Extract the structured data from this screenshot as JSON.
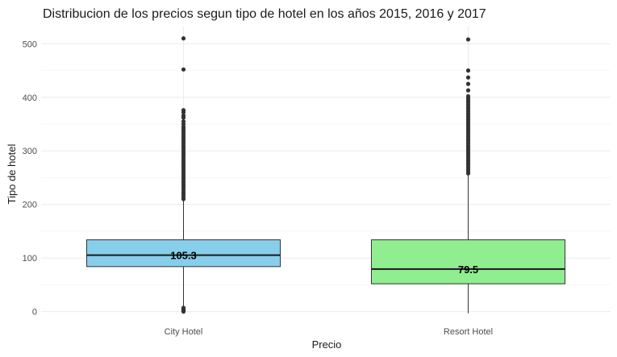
{
  "chart_data": {
    "type": "box",
    "title": "Distribucion de los precios segun tipo de hotel en los años 2015, 2016 y 2017",
    "xlabel": "Precio",
    "ylabel": "Tipo de hotel",
    "ylim": [
      -5,
      532
    ],
    "y_ticks": [
      0,
      100,
      200,
      300,
      400,
      500
    ],
    "grid": true,
    "categories": [
      "City Hotel",
      "Resort Hotel"
    ],
    "series": [
      {
        "category": "City Hotel",
        "color": "#87CEEB",
        "whisker_low": 0,
        "q1": 84,
        "median": 105.3,
        "q3": 134,
        "whisker_high": 209,
        "median_label": "105.3",
        "outliers": [
          0,
          1,
          2,
          3,
          4,
          5,
          6,
          7,
          210,
          214,
          218,
          222,
          226,
          230,
          234,
          238,
          242,
          246,
          250,
          254,
          258,
          262,
          266,
          270,
          274,
          278,
          282,
          286,
          290,
          294,
          298,
          302,
          306,
          310,
          314,
          318,
          322,
          326,
          330,
          334,
          338,
          342,
          345,
          350,
          355,
          362,
          366,
          372,
          376,
          452,
          510
        ]
      },
      {
        "category": "Resort Hotel",
        "color": "#90EE90",
        "whisker_low": -3,
        "q1": 52,
        "median": 79.5,
        "q3": 134,
        "whisker_high": 257,
        "median_label": "79.5",
        "outliers": [
          258,
          262,
          266,
          270,
          274,
          278,
          282,
          286,
          290,
          294,
          298,
          302,
          306,
          310,
          314,
          318,
          322,
          326,
          330,
          334,
          338,
          342,
          346,
          350,
          354,
          358,
          362,
          366,
          370,
          374,
          378,
          382,
          386,
          390,
          394,
          398,
          402,
          413,
          425,
          437,
          450,
          508
        ]
      }
    ]
  }
}
